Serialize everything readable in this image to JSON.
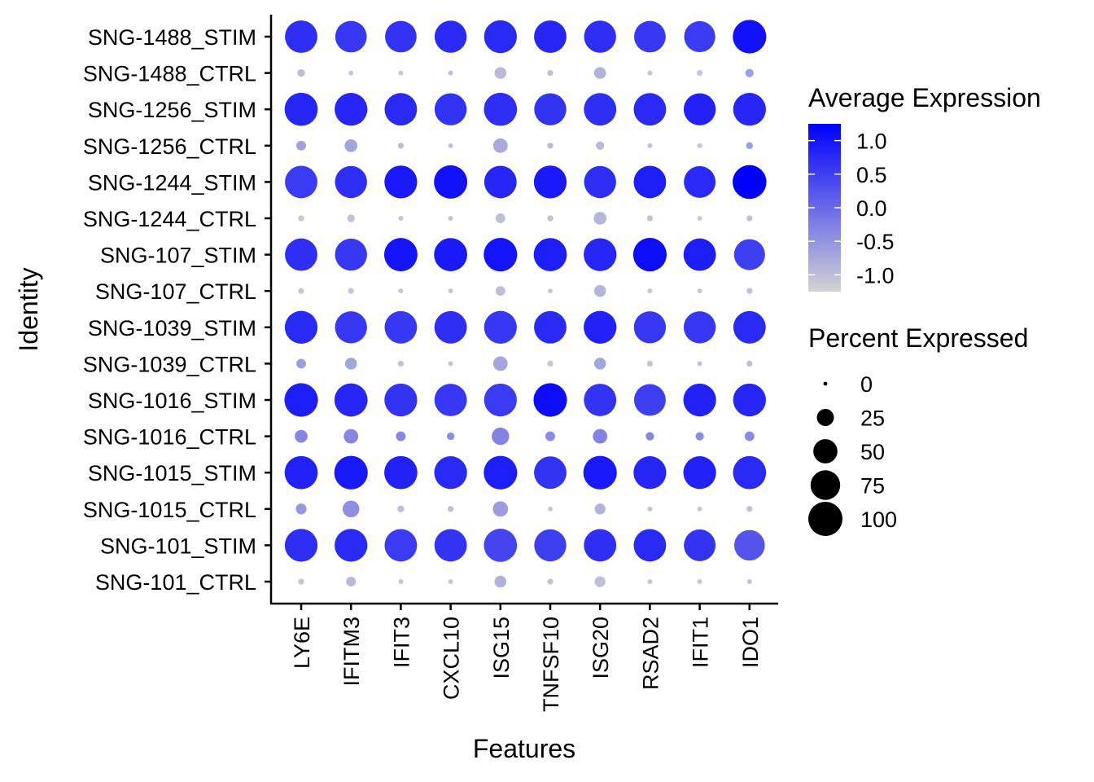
{
  "chart_data": {
    "type": "dotplot",
    "xlabel": "Features",
    "ylabel": "Identity",
    "features": [
      "LY6E",
      "IFITM3",
      "IFIT3",
      "CXCL10",
      "ISG15",
      "TNFSF10",
      "ISG20",
      "RSAD2",
      "IFIT1",
      "IDO1"
    ],
    "identities": [
      "SNG-1488_STIM",
      "SNG-1488_CTRL",
      "SNG-1256_STIM",
      "SNG-1256_CTRL",
      "SNG-1244_STIM",
      "SNG-1244_CTRL",
      "SNG-107_STIM",
      "SNG-107_CTRL",
      "SNG-1039_STIM",
      "SNG-1039_CTRL",
      "SNG-1016_STIM",
      "SNG-1016_CTRL",
      "SNG-1015_STIM",
      "SNG-1015_CTRL",
      "SNG-101_STIM",
      "SNG-101_CTRL"
    ],
    "avg_expression": [
      [
        0.7,
        0.6,
        0.65,
        0.75,
        0.75,
        0.8,
        0.7,
        0.6,
        0.55,
        1.05
      ],
      [
        -1.0,
        -1.1,
        -1.1,
        -1.0,
        -0.95,
        -1.05,
        -0.85,
        -1.1,
        -1.1,
        -0.65
      ],
      [
        0.8,
        0.8,
        0.75,
        0.65,
        0.7,
        0.65,
        0.7,
        0.75,
        0.85,
        0.8
      ],
      [
        -0.65,
        -0.7,
        -1.0,
        -1.05,
        -0.75,
        -0.95,
        -0.95,
        -1.05,
        -1.05,
        -0.6
      ],
      [
        0.55,
        0.7,
        0.95,
        1.05,
        0.8,
        0.95,
        0.7,
        0.9,
        0.75,
        1.25
      ],
      [
        -1.1,
        -1.05,
        -1.1,
        -1.1,
        -1.0,
        -1.05,
        -0.9,
        -1.05,
        -1.1,
        -1.05
      ],
      [
        0.7,
        0.6,
        1.0,
        0.95,
        1.0,
        0.9,
        0.8,
        1.1,
        0.9,
        0.5
      ],
      [
        -1.1,
        -1.1,
        -1.1,
        -1.1,
        -1.0,
        -1.1,
        -0.9,
        -1.1,
        -1.1,
        -1.05
      ],
      [
        0.75,
        0.6,
        0.6,
        0.7,
        0.6,
        0.75,
        0.85,
        0.6,
        0.6,
        0.75
      ],
      [
        -0.6,
        -0.7,
        -1.05,
        -1.1,
        -0.7,
        -1.1,
        -0.7,
        -1.05,
        -1.05,
        -1.0
      ],
      [
        0.9,
        0.8,
        0.65,
        0.6,
        0.55,
        1.1,
        0.65,
        0.5,
        0.85,
        0.8
      ],
      [
        -0.35,
        -0.35,
        -0.35,
        -0.45,
        -0.3,
        -0.4,
        -0.3,
        -0.35,
        -0.4,
        -0.4
      ],
      [
        0.85,
        0.95,
        0.85,
        0.75,
        0.9,
        0.65,
        0.95,
        0.8,
        0.85,
        0.75
      ],
      [
        -0.55,
        -0.45,
        -1.0,
        -1.0,
        -0.6,
        -1.1,
        -0.85,
        -1.05,
        -1.1,
        -1.05
      ],
      [
        0.7,
        0.75,
        0.55,
        0.65,
        0.45,
        0.5,
        0.7,
        0.75,
        0.65,
        0.25
      ],
      [
        -1.1,
        -0.95,
        -1.1,
        -1.1,
        -0.85,
        -1.05,
        -1.0,
        -1.1,
        -1.1,
        -1.05
      ]
    ],
    "pct_expressed": [
      [
        90,
        85,
        85,
        88,
        92,
        90,
        88,
        85,
        83,
        96
      ],
      [
        5,
        2,
        2,
        2,
        12,
        3,
        12,
        2,
        3,
        6
      ],
      [
        94,
        92,
        90,
        88,
        94,
        88,
        90,
        90,
        88,
        92
      ],
      [
        8,
        14,
        3,
        2,
        18,
        3,
        6,
        2,
        2,
        4
      ],
      [
        90,
        88,
        92,
        95,
        90,
        92,
        88,
        90,
        86,
        98
      ],
      [
        3,
        5,
        2,
        2,
        8,
        3,
        14,
        3,
        2,
        3
      ],
      [
        90,
        88,
        95,
        94,
        96,
        94,
        92,
        96,
        90,
        82
      ],
      [
        3,
        3,
        2,
        2,
        8,
        2,
        12,
        2,
        2,
        3
      ],
      [
        92,
        88,
        90,
        90,
        92,
        90,
        92,
        88,
        88,
        90
      ],
      [
        8,
        12,
        3,
        2,
        18,
        3,
        12,
        3,
        2,
        3
      ],
      [
        96,
        94,
        92,
        90,
        92,
        96,
        90,
        86,
        92,
        92
      ],
      [
        14,
        18,
        8,
        5,
        26,
        8,
        18,
        6,
        6,
        8
      ],
      [
        94,
        96,
        94,
        92,
        96,
        90,
        96,
        92,
        92,
        94
      ],
      [
        10,
        24,
        4,
        3,
        20,
        2,
        10,
        2,
        2,
        3
      ],
      [
        92,
        92,
        90,
        90,
        94,
        88,
        90,
        90,
        86,
        80
      ],
      [
        3,
        8,
        2,
        2,
        12,
        3,
        10,
        2,
        2,
        2
      ]
    ],
    "color_scale": {
      "low": "#D3D3D3",
      "high": "#0000FF",
      "range": [
        -1.25,
        1.25
      ]
    },
    "legend_color": {
      "title": "Average Expression",
      "ticks": [
        "1.0",
        "0.5",
        "0.0",
        "-0.5",
        "-1.0"
      ],
      "tick_values": [
        1.0,
        0.5,
        0.0,
        -0.5,
        -1.0
      ]
    },
    "legend_size": {
      "title": "Percent Expressed",
      "labels": [
        "0",
        "25",
        "50",
        "75",
        "100"
      ],
      "values": [
        0,
        25,
        50,
        75,
        100
      ]
    },
    "legend_placement": "right",
    "grid": false
  }
}
